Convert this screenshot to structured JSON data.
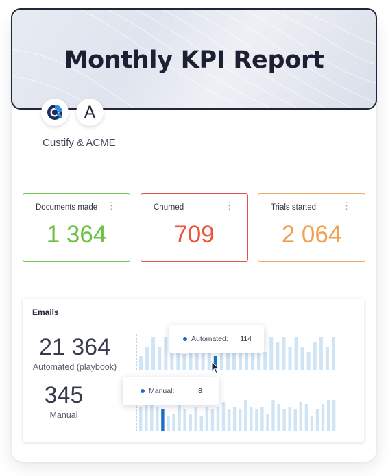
{
  "header": {
    "title": "Monthly KPI Report"
  },
  "partners": {
    "text": "Custify &  ACME",
    "logos": [
      {
        "name": "custify-logo-icon",
        "glyph": ""
      },
      {
        "name": "acme-logo-icon",
        "glyph": "A"
      }
    ]
  },
  "kpis": [
    {
      "label": "Documents made",
      "value": "1 364",
      "color": "#6cc240"
    },
    {
      "label": "Churned",
      "value": "709",
      "color": "#ef5236"
    },
    {
      "label": "Trials started",
      "value": "2 064",
      "color": "#f1a04f"
    }
  ],
  "kpi_menu_icon": "⋮",
  "emails": {
    "title": "Emails",
    "automated": {
      "value": "21 364",
      "label": "Automated (playbook)"
    },
    "manual": {
      "value": "345",
      "label": "Manual"
    },
    "bar_colors": {
      "bar": "#cfe4f4",
      "highlight": "#1a6fc4"
    },
    "automated_bars": [
      20,
      33,
      48,
      33,
      48,
      33,
      48,
      23,
      48,
      33,
      40,
      26,
      20,
      48,
      33,
      48,
      33,
      48,
      33,
      48,
      26,
      48,
      40,
      48,
      33,
      48,
      33,
      26,
      40,
      48,
      33,
      48
    ],
    "automated_highlight_index": 12,
    "manual_bars": [
      36,
      46,
      43,
      36,
      33,
      23,
      26,
      48,
      33,
      26,
      36,
      23,
      36,
      33,
      36,
      43,
      33,
      36,
      33,
      46,
      36,
      33,
      36,
      26,
      46,
      40,
      33,
      36,
      33,
      43,
      40,
      23,
      33,
      40,
      46,
      46
    ],
    "manual_highlight_index": 4,
    "tooltips": {
      "automated": {
        "label": "Automated:",
        "value": "114"
      },
      "manual": {
        "label": "Manual:",
        "value": "8"
      }
    }
  }
}
